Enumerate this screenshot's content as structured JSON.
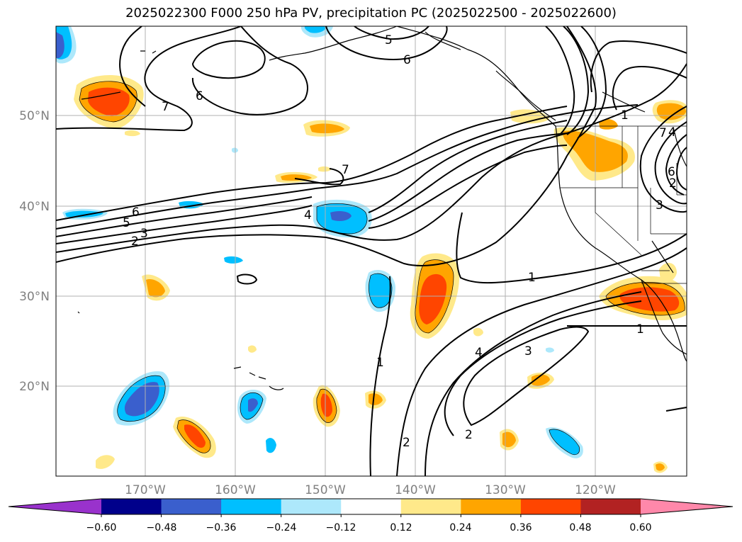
{
  "title": "2025022300 F000 250 hPa PV, precipitation PC (2025022500 - 2025022600)",
  "colors": {
    "grid": "#b0b0b0",
    "contour": "#000000",
    "axis_label": "#808080"
  },
  "axes": {
    "lon_labels": [
      "170°W",
      "160°W",
      "150°W",
      "140°W",
      "130°W",
      "120°W"
    ],
    "lat_labels": [
      "50°N",
      "40°N",
      "30°N",
      "20°N"
    ]
  },
  "colorbar": {
    "ticks": [
      "−0.60",
      "−0.48",
      "−0.36",
      "−0.24",
      "−0.12",
      "0.12",
      "0.24",
      "0.36",
      "0.48",
      "0.60"
    ],
    "bins": [
      "#9932cc",
      "#00008b",
      "#3a5fcd",
      "#00bfff",
      "#ade8fb",
      "#ffffff",
      "#ffe98a",
      "#ffa500",
      "#ff4500",
      "#b22222",
      "#ff88aa"
    ]
  },
  "contour_labels": [
    "5",
    "6",
    "6",
    "7",
    "7",
    "6",
    "5",
    "3",
    "2",
    "4",
    "1",
    "1",
    "1",
    "4",
    "3",
    "2",
    "2",
    "1",
    "7",
    "4",
    "2",
    "3",
    "6"
  ]
}
